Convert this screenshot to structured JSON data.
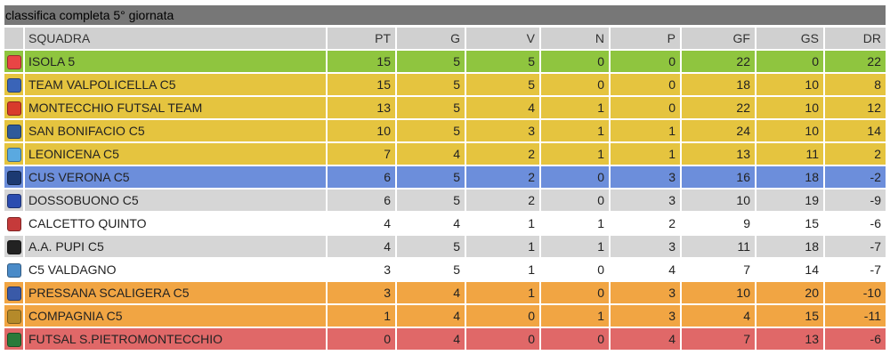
{
  "title": "classifica completa 5° giornata",
  "headers": [
    "SQUADRA",
    "PT",
    "G",
    "V",
    "N",
    "P",
    "GF",
    "GS",
    "DR"
  ],
  "zone_colors": {
    "green": "#8fc53f",
    "yellow": "#e5c43f",
    "blue": "#6c8edb",
    "grey": "#d6d6d6",
    "white": "#ffffff",
    "orange": "#f1a543",
    "red": "#e06868"
  },
  "rows": [
    {
      "team": "ISOLA 5",
      "logo": "isola5-logo",
      "logo_color": "#e94545",
      "zone": "green",
      "pt": "15",
      "g": "5",
      "v": "5",
      "n": "0",
      "p": "0",
      "gf": "22",
      "gs": "0",
      "dr": "22"
    },
    {
      "team": "TEAM VALPOLICELLA C5",
      "logo": "valpolicella-logo",
      "logo_color": "#3a64b8",
      "zone": "yellow",
      "pt": "15",
      "g": "5",
      "v": "5",
      "n": "0",
      "p": "0",
      "gf": "18",
      "gs": "10",
      "dr": "8"
    },
    {
      "team": "MONTECCHIO FUTSAL TEAM",
      "logo": "montecchio-logo",
      "logo_color": "#d83a2c",
      "zone": "yellow",
      "pt": "13",
      "g": "5",
      "v": "4",
      "n": "1",
      "p": "0",
      "gf": "22",
      "gs": "10",
      "dr": "12"
    },
    {
      "team": "SAN BONIFACIO C5",
      "logo": "sanbonifacio-logo",
      "logo_color": "#2f5a9a",
      "zone": "yellow",
      "pt": "10",
      "g": "5",
      "v": "3",
      "n": "1",
      "p": "1",
      "gf": "24",
      "gs": "10",
      "dr": "14"
    },
    {
      "team": "LEONICENA C5",
      "logo": "leonicena-logo",
      "logo_color": "#5aa9e0",
      "zone": "yellow",
      "pt": "7",
      "g": "4",
      "v": "2",
      "n": "1",
      "p": "1",
      "gf": "13",
      "gs": "11",
      "dr": "2"
    },
    {
      "team": "CUS VERONA C5",
      "logo": "cusverona-logo",
      "logo_color": "#1c3a72",
      "zone": "blue",
      "pt": "6",
      "g": "5",
      "v": "2",
      "n": "0",
      "p": "3",
      "gf": "16",
      "gs": "18",
      "dr": "-2"
    },
    {
      "team": "DOSSOBUONO C5",
      "logo": "dossobuono-logo",
      "logo_color": "#2b4cb0",
      "zone": "grey",
      "pt": "6",
      "g": "5",
      "v": "2",
      "n": "0",
      "p": "3",
      "gf": "10",
      "gs": "19",
      "dr": "-9"
    },
    {
      "team": "CALCETTO QUINTO",
      "logo": "calcettoquinto-logo",
      "logo_color": "#c53a3a",
      "zone": "white",
      "pt": "4",
      "g": "4",
      "v": "1",
      "n": "1",
      "p": "2",
      "gf": "9",
      "gs": "15",
      "dr": "-6"
    },
    {
      "team": "A.A. PUPI C5",
      "logo": "pupi-logo",
      "logo_color": "#222222",
      "zone": "grey",
      "pt": "4",
      "g": "5",
      "v": "1",
      "n": "1",
      "p": "3",
      "gf": "11",
      "gs": "18",
      "dr": "-7"
    },
    {
      "team": "C5 VALDAGNO",
      "logo": "valdagno-logo",
      "logo_color": "#4a8bc8",
      "zone": "white",
      "pt": "3",
      "g": "5",
      "v": "1",
      "n": "0",
      "p": "4",
      "gf": "7",
      "gs": "14",
      "dr": "-7"
    },
    {
      "team": "PRESSANA SCALIGERA C5",
      "logo": "pressana-logo",
      "logo_color": "#3a5aa8",
      "zone": "orange",
      "pt": "3",
      "g": "4",
      "v": "1",
      "n": "0",
      "p": "3",
      "gf": "10",
      "gs": "20",
      "dr": "-10"
    },
    {
      "team": "COMPAGNIA C5",
      "logo": "compagnia-logo",
      "logo_color": "#b58a2a",
      "zone": "orange",
      "pt": "1",
      "g": "4",
      "v": "0",
      "n": "1",
      "p": "3",
      "gf": "4",
      "gs": "15",
      "dr": "-11"
    },
    {
      "team": "FUTSAL S.PIETROMONTECCHIO",
      "logo": "sanpietro-logo",
      "logo_color": "#2a7a3a",
      "zone": "red",
      "pt": "0",
      "g": "4",
      "v": "0",
      "n": "0",
      "p": "4",
      "gf": "7",
      "gs": "13",
      "dr": "-6"
    }
  ]
}
